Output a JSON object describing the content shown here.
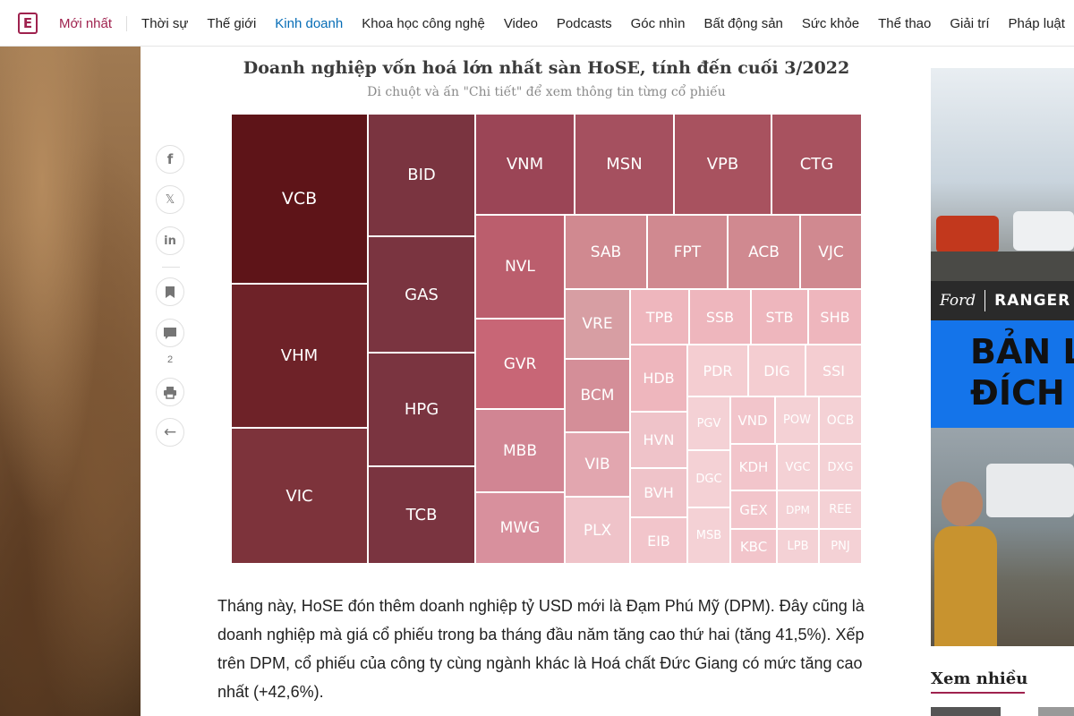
{
  "nav": {
    "logo": "E",
    "items": [
      {
        "label": "Mới nhất",
        "state": "latest"
      },
      {
        "label": "Thời sự",
        "state": ""
      },
      {
        "label": "Thế giới",
        "state": ""
      },
      {
        "label": "Kinh doanh",
        "state": "active"
      },
      {
        "label": "Khoa học công nghệ",
        "state": ""
      },
      {
        "label": "Video",
        "state": ""
      },
      {
        "label": "Podcasts",
        "state": ""
      },
      {
        "label": "Góc nhìn",
        "state": ""
      },
      {
        "label": "Bất động sản",
        "state": ""
      },
      {
        "label": "Sức khỏe",
        "state": ""
      },
      {
        "label": "Thể thao",
        "state": ""
      },
      {
        "label": "Giải trí",
        "state": ""
      },
      {
        "label": "Pháp luật",
        "state": ""
      }
    ]
  },
  "share": {
    "facebook_icon": "f",
    "x_icon": "𝕏",
    "linkedin_icon": "in",
    "bookmark_icon": "bookmark",
    "comment_icon": "comment",
    "comment_count": "2",
    "print_icon": "print",
    "back_icon": "←"
  },
  "chart": {
    "title": "Doanh nghiệp vốn hoá lớn nhất sàn HoSE, tính đến cuối 3/2022",
    "subtitle": "Di chuột và ấn \"Chi tiết\" để xem thông tin từng cổ phiếu"
  },
  "chart_data": {
    "type": "treemap",
    "title": "Doanh nghiệp vốn hoá lớn nhất sàn HoSE, tính đến cuối 3/2022",
    "tiles": [
      {
        "label": "VCB",
        "color": "#5e1418"
      },
      {
        "label": "VHM",
        "color": "#6e2228"
      },
      {
        "label": "VIC",
        "color": "#7d333b"
      },
      {
        "label": "BID",
        "color": "#7a3440"
      },
      {
        "label": "GAS",
        "color": "#7a3440"
      },
      {
        "label": "HPG",
        "color": "#7a3440"
      },
      {
        "label": "TCB",
        "color": "#7a3440"
      },
      {
        "label": "VNM",
        "color": "#9b4556"
      },
      {
        "label": "MSN",
        "color": "#a5505f"
      },
      {
        "label": "VPB",
        "color": "#a8525f"
      },
      {
        "label": "CTG",
        "color": "#a8525f"
      },
      {
        "label": "NVL",
        "color": "#bb5e6d"
      },
      {
        "label": "GVR",
        "color": "#c86676"
      },
      {
        "label": "MBB",
        "color": "#d18593"
      },
      {
        "label": "MWG",
        "color": "#d8909d"
      },
      {
        "label": "SAB",
        "color": "#d08990"
      },
      {
        "label": "FPT",
        "color": "#d08990"
      },
      {
        "label": "ACB",
        "color": "#d08990"
      },
      {
        "label": "VJC",
        "color": "#d08990"
      },
      {
        "label": "VRE",
        "color": "#d79ea3"
      },
      {
        "label": "BCM",
        "color": "#d48e98"
      },
      {
        "label": "VIB",
        "color": "#e2a6af"
      },
      {
        "label": "PLX",
        "color": "#efc3c9"
      },
      {
        "label": "TPB",
        "color": "#eeb6bd"
      },
      {
        "label": "SSB",
        "color": "#eeb6bd"
      },
      {
        "label": "STB",
        "color": "#eeb6bd"
      },
      {
        "label": "SHB",
        "color": "#eeb6bd"
      },
      {
        "label": "HDB",
        "color": "#eeb6bd"
      },
      {
        "label": "PDR",
        "color": "#f4cdd1"
      },
      {
        "label": "DIG",
        "color": "#f4cdd1"
      },
      {
        "label": "SSI",
        "color": "#f4cdd1"
      },
      {
        "label": "HVN",
        "color": "#efc3c9"
      },
      {
        "label": "PGV",
        "color": "#f4d1d5"
      },
      {
        "label": "VND",
        "color": "#f2c5cb"
      },
      {
        "label": "POW",
        "color": "#f4d1d5"
      },
      {
        "label": "OCB",
        "color": "#f4d1d5"
      },
      {
        "label": "BVH",
        "color": "#efc3c9"
      },
      {
        "label": "DGC",
        "color": "#f4d1d5"
      },
      {
        "label": "KDH",
        "color": "#f2c5cb"
      },
      {
        "label": "VGC",
        "color": "#f4d1d5"
      },
      {
        "label": "DXG",
        "color": "#f4d1d5"
      },
      {
        "label": "EIB",
        "color": "#f2c5cb"
      },
      {
        "label": "MSB",
        "color": "#f4d1d5"
      },
      {
        "label": "GEX",
        "color": "#f2c5cb"
      },
      {
        "label": "DPM",
        "color": "#f4d1d5"
      },
      {
        "label": "REE",
        "color": "#f4d1d5"
      },
      {
        "label": "KBC",
        "color": "#f2c5cb"
      },
      {
        "label": "LPB",
        "color": "#f4d1d5"
      },
      {
        "label": "PNJ",
        "color": "#f4d1d5"
      }
    ]
  },
  "article": {
    "paragraph": "Tháng này, HoSE đón thêm doanh nghiệp tỷ USD mới là Đạm Phú Mỹ (DPM). Đây cũng là doanh nghiệp mà giá cổ phiếu trong ba tháng đầu năm tăng cao thứ hai (tăng 41,5%). Xếp trên DPM, cổ phiếu của công ty cùng ngành khác là Hoá chất Đức Giang có mức tăng cao nhất (+42,6%)."
  },
  "ad": {
    "brand": "Ford",
    "model": "RANGER",
    "headline_1": "BẢN L",
    "headline_2": "ĐÍCH T"
  },
  "sidebar": {
    "most_viewed": "Xem nhiều"
  }
}
